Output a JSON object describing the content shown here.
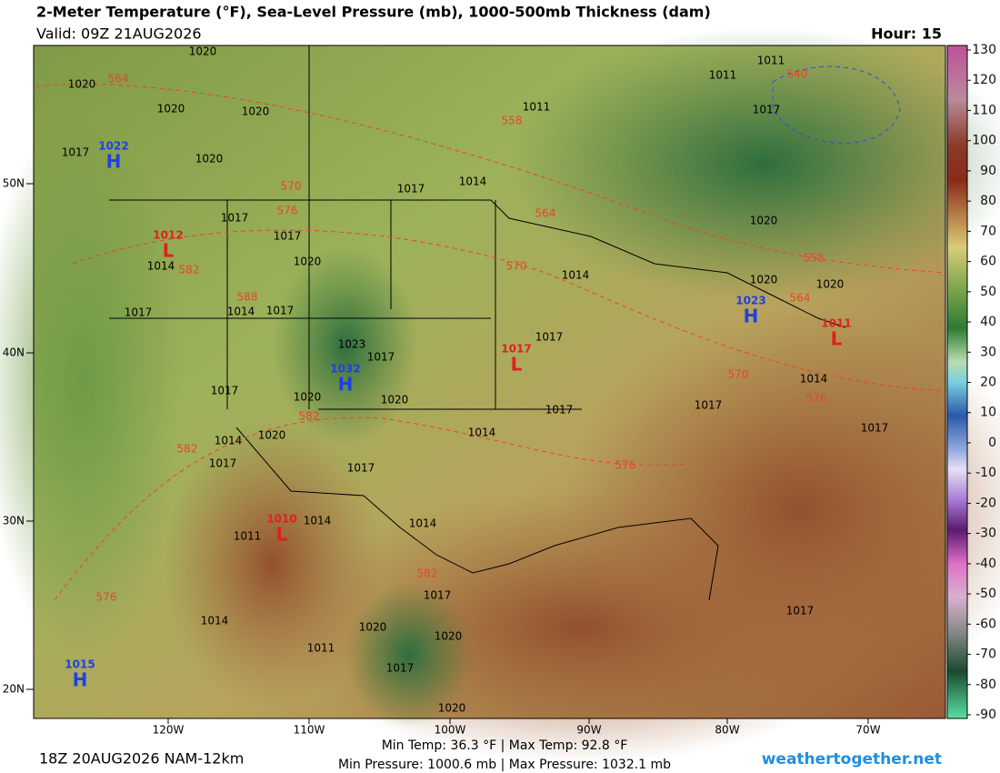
{
  "header": {
    "title": "2-Meter Temperature (°F), Sea-Level Pressure (mb), 1000-500mb Thickness (dam)",
    "valid": "Valid: 09Z 21AUG2026",
    "hour": "Hour: 15"
  },
  "map": {
    "lat_labels": [
      "50N",
      "40N",
      "30N",
      "20N"
    ],
    "lon_labels": [
      "120W",
      "110W",
      "100W",
      "90W",
      "80W",
      "70W"
    ],
    "pressure_centers": [
      {
        "symbol": "H",
        "value": "1022"
      },
      {
        "symbol": "L",
        "value": "1012"
      },
      {
        "symbol": "H",
        "value": "1032"
      },
      {
        "symbol": "L",
        "value": "1017"
      },
      {
        "symbol": "H",
        "value": "1023"
      },
      {
        "symbol": "L",
        "value": "1011"
      },
      {
        "symbol": "L",
        "value": "1010"
      },
      {
        "symbol": "H",
        "value": "1015"
      }
    ],
    "isobar_labels": [
      "1020",
      "1020",
      "1020",
      "1020",
      "1020",
      "1017",
      "1011",
      "1011",
      "1011",
      "1017",
      "1017",
      "1014",
      "1017",
      "1017",
      "1020",
      "1014",
      "1014",
      "1020",
      "1020",
      "1020",
      "1017",
      "1014",
      "1017",
      "1023",
      "1017",
      "1017",
      "1014",
      "1017",
      "1020",
      "1020",
      "1017",
      "1017",
      "1014",
      "1014",
      "1020",
      "1017",
      "1017",
      "1017",
      "1014",
      "1014",
      "1011",
      "1017",
      "1017",
      "1014",
      "1020",
      "1020",
      "1011",
      "1017",
      "1020"
    ],
    "thickness_labels": [
      "564",
      "558",
      "540",
      "570",
      "576",
      "564",
      "582",
      "588",
      "570",
      "558",
      "564",
      "570",
      "576",
      "582",
      "582",
      "576",
      "582",
      "576"
    ]
  },
  "colorbar": {
    "ticks": [
      130,
      120,
      110,
      100,
      90,
      80,
      70,
      60,
      50,
      40,
      30,
      20,
      10,
      0,
      -10,
      -20,
      -30,
      -40,
      -50,
      -60,
      -70,
      -80,
      -90
    ]
  },
  "footer": {
    "run": "18Z 20AUG2026 NAM-12km",
    "temp": "Min Temp:  36.3 °F | Max Temp:  92.8 °F",
    "pressure": "Min Pressure: 1000.6 mb | Max Pressure: 1032.1 mb",
    "site": "weathertogether.net"
  }
}
